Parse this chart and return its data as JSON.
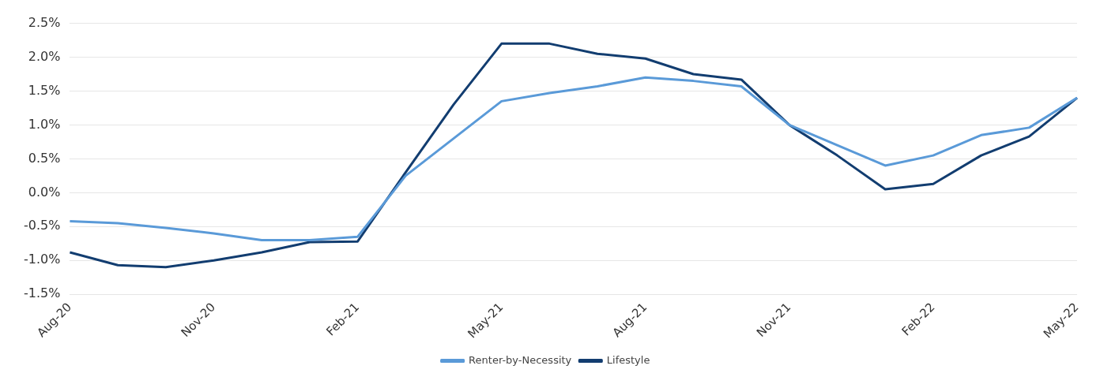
{
  "chart_data": {
    "type": "line",
    "categories": [
      "Aug-20",
      null,
      null,
      "Nov-20",
      null,
      null,
      "Feb-21",
      null,
      null,
      "May-21",
      null,
      null,
      "Aug-21",
      null,
      null,
      "Nov-21",
      null,
      null,
      "Feb-22",
      null,
      null,
      "May-22"
    ],
    "series": [
      {
        "name": "Renter-by-Necessity",
        "color": "#5a9ad8",
        "values": [
          -0.42,
          -0.45,
          -0.52,
          -0.6,
          -0.7,
          -0.7,
          -0.65,
          0.25,
          0.8,
          1.35,
          1.47,
          1.57,
          1.7,
          1.65,
          1.57,
          1.0,
          0.7,
          0.4,
          0.55,
          0.85,
          0.96,
          1.4
        ]
      },
      {
        "name": "Lifestyle",
        "color": "#123d70",
        "values": [
          -0.88,
          -1.07,
          -1.1,
          -1.0,
          -0.88,
          -0.73,
          -0.72,
          0.3,
          1.3,
          2.2,
          2.2,
          2.05,
          1.98,
          1.75,
          1.67,
          1.0,
          0.55,
          0.05,
          0.13,
          0.55,
          0.83,
          1.4
        ]
      }
    ],
    "ylim": [
      -1.5,
      2.5
    ],
    "yticks": [
      {
        "value": -1.5,
        "label": "-1.5%"
      },
      {
        "value": -1.0,
        "label": "-1.0%"
      },
      {
        "value": -0.5,
        "label": "-0.5%"
      },
      {
        "value": 0,
        "label": "0.0%"
      },
      {
        "value": 0.5,
        "label": "0.5%"
      },
      {
        "value": 1.0,
        "label": "1.0%"
      },
      {
        "value": 1.5,
        "label": "1.5%"
      },
      {
        "value": 2.0,
        "label": "2.0%"
      },
      {
        "value": 2.5,
        "label": "2.5%"
      }
    ],
    "grid": "y",
    "legend": "bottom",
    "marker": "none",
    "line_style": "solid"
  }
}
